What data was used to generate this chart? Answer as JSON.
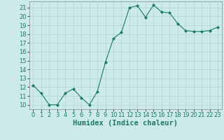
{
  "xlabel": "Humidex (Indice chaleur)",
  "x": [
    0,
    1,
    2,
    3,
    4,
    5,
    6,
    7,
    8,
    9,
    10,
    11,
    12,
    13,
    14,
    15,
    16,
    17,
    18,
    19,
    20,
    21,
    22,
    23
  ],
  "y": [
    12.2,
    11.3,
    10.0,
    10.0,
    11.3,
    11.8,
    10.8,
    10.0,
    11.5,
    14.8,
    17.5,
    18.2,
    21.0,
    21.2,
    19.9,
    21.3,
    20.5,
    20.4,
    19.2,
    18.4,
    18.3,
    18.3,
    18.4,
    18.8
  ],
  "line_color": "#1a7a6a",
  "marker": "D",
  "marker_size": 2.0,
  "bg_color": "#cceaea",
  "grid_color": "#b0d4d4",
  "ylim": [
    9.5,
    21.7
  ],
  "yticks": [
    10,
    11,
    12,
    13,
    14,
    15,
    16,
    17,
    18,
    19,
    20,
    21
  ],
  "xlim": [
    -0.5,
    23.5
  ],
  "xticks": [
    0,
    1,
    2,
    3,
    4,
    5,
    6,
    7,
    8,
    9,
    10,
    11,
    12,
    13,
    14,
    15,
    16,
    17,
    18,
    19,
    20,
    21,
    22,
    23
  ],
  "tick_fontsize": 6,
  "xlabel_fontsize": 7.5,
  "xlabel_fontweight": "bold"
}
